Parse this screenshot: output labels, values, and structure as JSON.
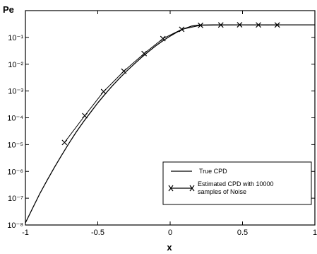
{
  "chart_data": {
    "type": "line",
    "title": "",
    "xlabel": "x",
    "ylabel": "Pe",
    "xlim": [
      -1,
      1
    ],
    "ylim": [
      1e-08,
      1
    ],
    "yscale": "log",
    "grid": false,
    "legend_position": "bottom-right",
    "x_ticks": [
      -1,
      -0.5,
      0,
      0.5,
      1
    ],
    "x_tick_labels": [
      "-1",
      "-0.5",
      "0",
      "0.5",
      "1"
    ],
    "y_ticks": [
      1e-08,
      1e-07,
      1e-06,
      1e-05,
      0.0001,
      0.001,
      0.01,
      0.1
    ],
    "y_tick_labels": [
      "10⁻⁸",
      "10⁻⁷",
      "10⁻⁶",
      "10⁻⁵",
      "10⁻⁴",
      "10⁻³",
      "10⁻²",
      "10⁻¹"
    ],
    "series": [
      {
        "name": "True CPD",
        "marker": "none",
        "x": [
          -1,
          -0.95,
          -0.9,
          -0.85,
          -0.8,
          -0.75,
          -0.7,
          -0.65,
          -0.6,
          -0.55,
          -0.5,
          -0.45,
          -0.4,
          -0.35,
          -0.3,
          -0.25,
          -0.2,
          -0.15,
          -0.1,
          -0.05,
          0,
          0.05,
          0.1,
          0.15,
          0.2,
          0.3,
          0.4,
          0.5,
          0.6,
          0.7,
          0.8,
          0.9,
          1
        ],
        "y": [
          1.2e-08,
          4.3e-08,
          1.5e-07,
          4.7e-07,
          1.4e-06,
          4e-06,
          1.1e-05,
          2.9e-05,
          7e-05,
          0.00016,
          0.00036,
          0.00076,
          0.00155,
          0.003,
          0.0056,
          0.01,
          0.0175,
          0.0295,
          0.048,
          0.075,
          0.112,
          0.16,
          0.215,
          0.265,
          0.29,
          0.295,
          0.295,
          0.295,
          0.295,
          0.295,
          0.295,
          0.295,
          0.295
        ]
      },
      {
        "name": "Estimated CPD with 10000 samples of Noise",
        "marker": "x",
        "x": [
          -0.73,
          -0.59,
          -0.46,
          -0.32,
          -0.18,
          -0.05,
          0.08,
          0.21,
          0.35,
          0.48,
          0.61,
          0.74
        ],
        "y": [
          1.2e-05,
          0.00012,
          0.00095,
          0.0055,
          0.025,
          0.09,
          0.2,
          0.282,
          0.29,
          0.295,
          0.292,
          0.29
        ]
      }
    ]
  }
}
